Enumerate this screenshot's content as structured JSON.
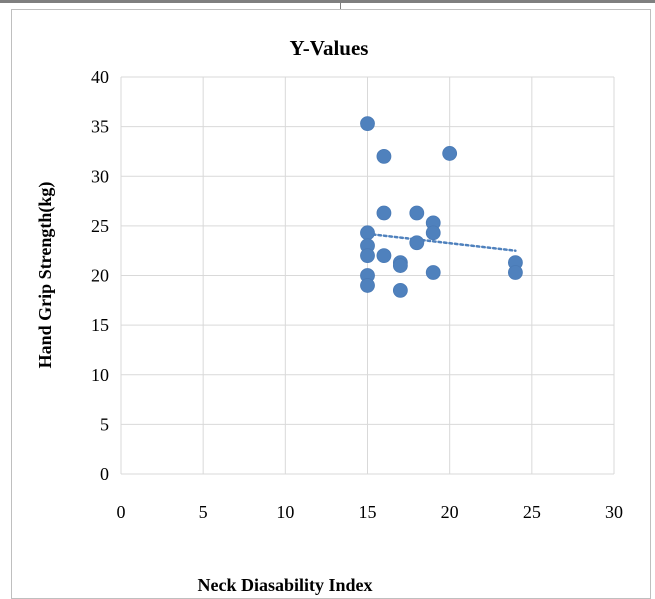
{
  "chart_data": {
    "type": "scatter",
    "title": "Y-Values",
    "xlabel": "Neck Diasability Index",
    "ylabel": "Hand Grip Strength(kg)",
    "xlim": [
      0,
      30
    ],
    "ylim": [
      0,
      40
    ],
    "x_ticks": [
      "0",
      "5",
      "10",
      "15",
      "20",
      "25",
      "30"
    ],
    "y_ticks": [
      "0",
      "5",
      "10",
      "15",
      "20",
      "25",
      "30",
      "35",
      "40"
    ],
    "grid": true,
    "marker_color": "#4f81bd",
    "trendline": {
      "type": "linear",
      "x": [
        15,
        24
      ],
      "y": [
        24.2,
        22.5
      ],
      "color": "#4f81bd",
      "style": "dotted"
    },
    "points": [
      {
        "x": 15,
        "y": 35.3
      },
      {
        "x": 16,
        "y": 32.0
      },
      {
        "x": 20,
        "y": 32.3
      },
      {
        "x": 16,
        "y": 26.3
      },
      {
        "x": 18,
        "y": 26.3
      },
      {
        "x": 19,
        "y": 25.3
      },
      {
        "x": 15,
        "y": 24.3
      },
      {
        "x": 19,
        "y": 24.3
      },
      {
        "x": 18,
        "y": 23.3
      },
      {
        "x": 15,
        "y": 23.0
      },
      {
        "x": 15,
        "y": 22.0
      },
      {
        "x": 16,
        "y": 22.0
      },
      {
        "x": 17,
        "y": 21.3
      },
      {
        "x": 17,
        "y": 21.0
      },
      {
        "x": 24,
        "y": 21.3
      },
      {
        "x": 15,
        "y": 20.0
      },
      {
        "x": 19,
        "y": 20.3
      },
      {
        "x": 24,
        "y": 20.3
      },
      {
        "x": 15,
        "y": 19.0
      },
      {
        "x": 17,
        "y": 18.5
      }
    ]
  }
}
